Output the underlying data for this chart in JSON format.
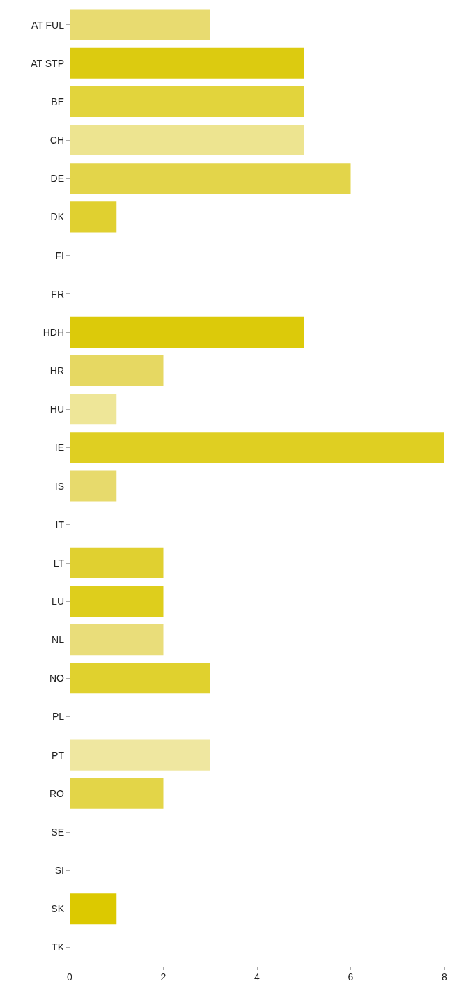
{
  "chart_data": {
    "type": "bar",
    "orientation": "horizontal",
    "categories": [
      "AT FUL",
      "AT STP",
      "BE",
      "CH",
      "DE",
      "DK",
      "FI",
      "FR",
      "HDH",
      "HR",
      "HU",
      "IE",
      "IS",
      "IT",
      "LT",
      "LU",
      "NL",
      "NO",
      "PL",
      "PT",
      "RO",
      "SE",
      "SI",
      "SK",
      "TK"
    ],
    "values": [
      3,
      5,
      5,
      5,
      6,
      1,
      0,
      0,
      5,
      2,
      1,
      8,
      1,
      0,
      2,
      2,
      2,
      3,
      0,
      3,
      2,
      0,
      0,
      1,
      0
    ],
    "colors": [
      "#e8db70",
      "#dccb10",
      "#e2d43c",
      "#ede490",
      "#e3d54a",
      "#e0d030",
      "#e0d030",
      "#e0d030",
      "#dcca0a",
      "#e6d862",
      "#eee698",
      "#dfcf22",
      "#e7da6c",
      "#e0d030",
      "#e0d030",
      "#dece1c",
      "#e9dd7a",
      "#e0d12e",
      "#e0d030",
      "#efe7a0",
      "#e3d548",
      "#e0d030",
      "#e0d030",
      "#dcc900",
      "#e0d030"
    ],
    "xlim": [
      0,
      8
    ],
    "xticks": [
      0,
      2,
      4,
      6,
      8
    ]
  }
}
